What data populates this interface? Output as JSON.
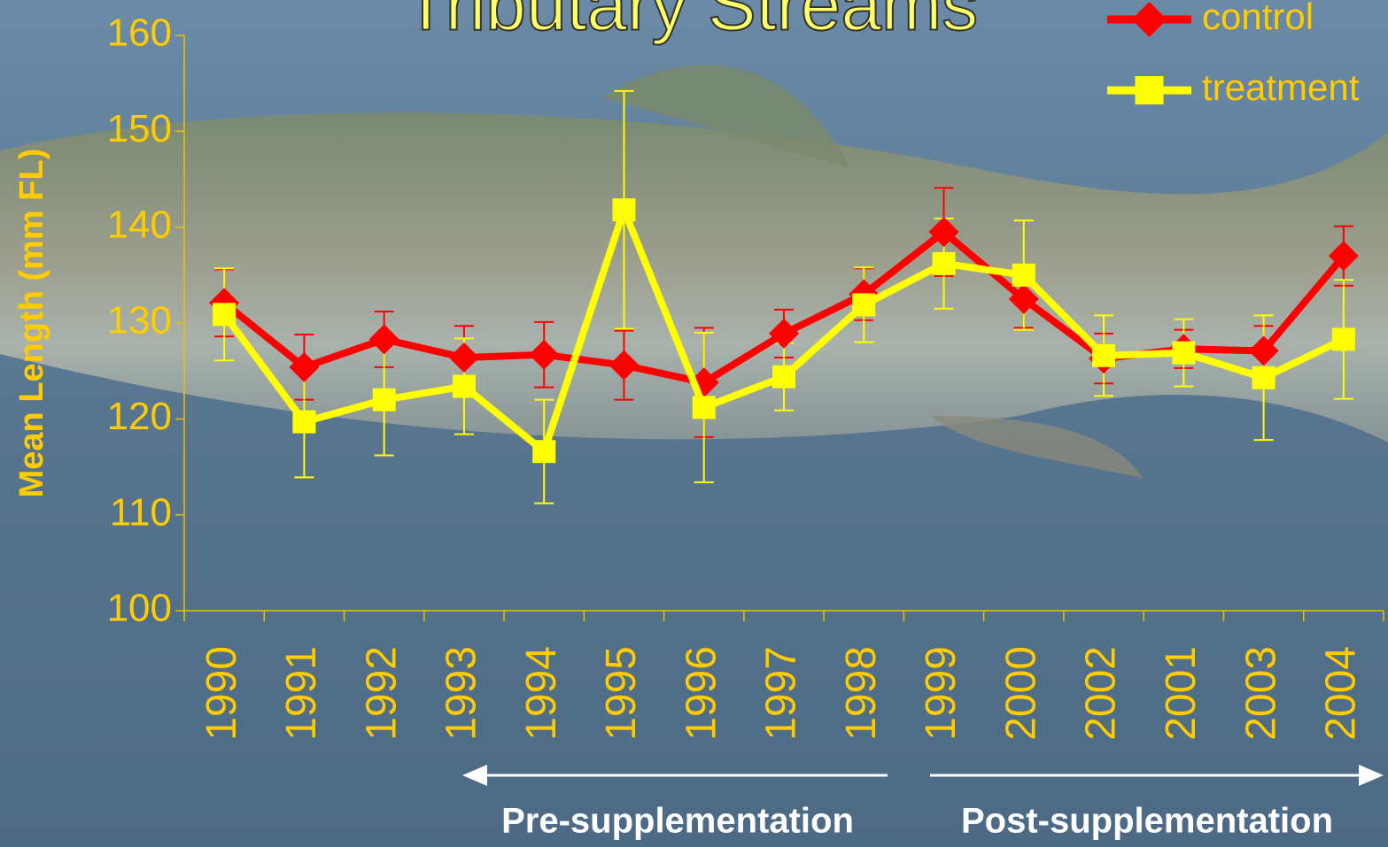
{
  "chart_data": {
    "type": "line",
    "title": "Tributary Streams",
    "y_label": "Mean Length (mm FL)",
    "categories": [
      "1990",
      "1991",
      "1992",
      "1993",
      "1994",
      "1995",
      "1996",
      "1997",
      "1998",
      "1999",
      "2000",
      "2002",
      "2001",
      "2003",
      "2004"
    ],
    "series": [
      {
        "name": "control",
        "color": "#ff0000",
        "marker": "diamond",
        "values": [
          132.1,
          125.4,
          128.3,
          126.4,
          126.7,
          125.6,
          123.8,
          128.9,
          133.0,
          139.5,
          132.5,
          126.3,
          127.3,
          127.1,
          137.0
        ],
        "errors": [
          3.5,
          3.4,
          2.9,
          3.3,
          3.4,
          3.6,
          5.7,
          2.5,
          2.7,
          4.6,
          3.0,
          2.6,
          2.0,
          2.6,
          3.1
        ]
      },
      {
        "name": "treatment",
        "color": "#ffff00",
        "marker": "square",
        "values": [
          130.9,
          119.7,
          122.0,
          123.4,
          116.6,
          141.8,
          121.2,
          124.4,
          131.9,
          136.2,
          135.0,
          126.6,
          126.9,
          124.3,
          128.3
        ],
        "errors": [
          4.8,
          5.8,
          5.8,
          5.0,
          5.4,
          12.4,
          7.8,
          3.5,
          3.9,
          4.7,
          5.7,
          4.2,
          3.5,
          6.5,
          6.2
        ]
      }
    ],
    "ylim": [
      100,
      160
    ],
    "yticks": [
      100,
      110,
      120,
      130,
      140,
      150,
      160
    ],
    "legend": "top-right",
    "annotations": [
      "Pre-supplementation",
      "Post-supplementation"
    ]
  }
}
